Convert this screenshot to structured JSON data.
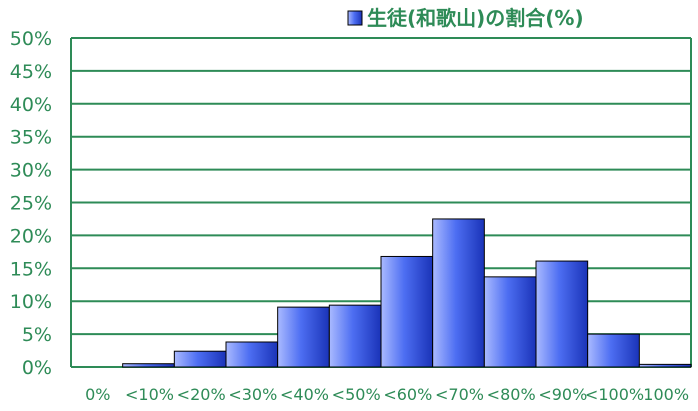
{
  "chart_data": {
    "type": "bar",
    "title": "",
    "xlabel": "",
    "ylabel": "",
    "categories": [
      "0%",
      "<10%",
      "<20%",
      "<30%",
      "<40%",
      "<50%",
      "<60%",
      "<70%",
      "<80%",
      "<90%",
      "<100%",
      "100%"
    ],
    "series": [
      {
        "name": "生徒(和歌山)の割合(%)",
        "values": [
          0,
          0.5,
          2.4,
          3.8,
          9.1,
          9.4,
          16.8,
          22.5,
          13.7,
          16.1,
          5.0,
          0.4
        ]
      }
    ],
    "ylim": [
      0,
      50
    ],
    "yticks": [
      "0%",
      "5%",
      "10%",
      "15%",
      "20%",
      "25%",
      "30%",
      "35%",
      "40%",
      "45%",
      "50%"
    ],
    "grid": true,
    "legend": "top-right",
    "colors": {
      "bar_light": "#aabaff",
      "bar_mid": "#4d6ef2",
      "bar_dark": "#1a33b8",
      "bar_stroke": "#000000",
      "grid": "#2e8b57",
      "label": "#2e8b57"
    }
  }
}
